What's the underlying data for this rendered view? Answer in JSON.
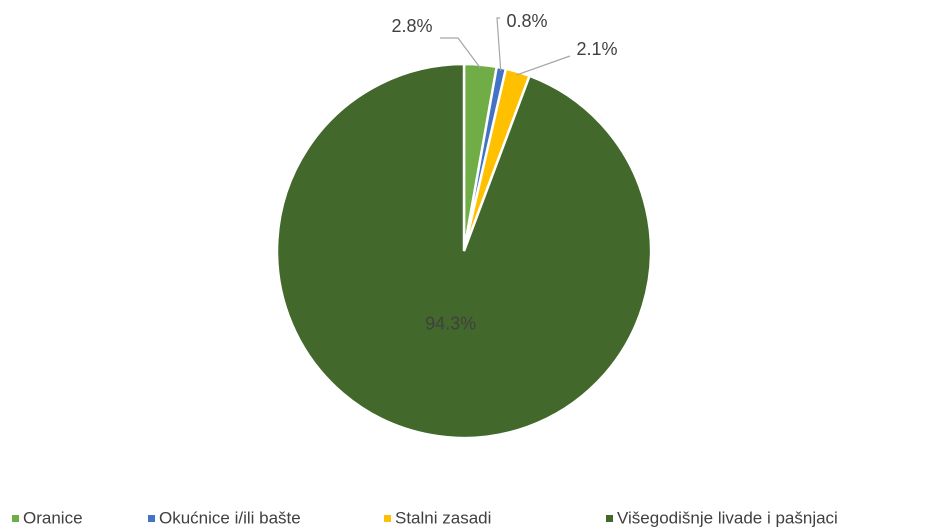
{
  "chart_data": {
    "type": "pie",
    "categories": [
      "Oranice",
      "Okućnice i/ili bašte",
      "Stalni zasadi",
      "Višegodišnje livade i pašnjaci"
    ],
    "values": [
      2.8,
      0.8,
      2.1,
      94.3
    ],
    "value_labels": [
      "2.8%",
      "0.8%",
      "2.1%",
      "94.3%"
    ],
    "colors": [
      "#70ad47",
      "#4472c4",
      "#ffc000",
      "#43682b"
    ],
    "legend": "bottom"
  }
}
